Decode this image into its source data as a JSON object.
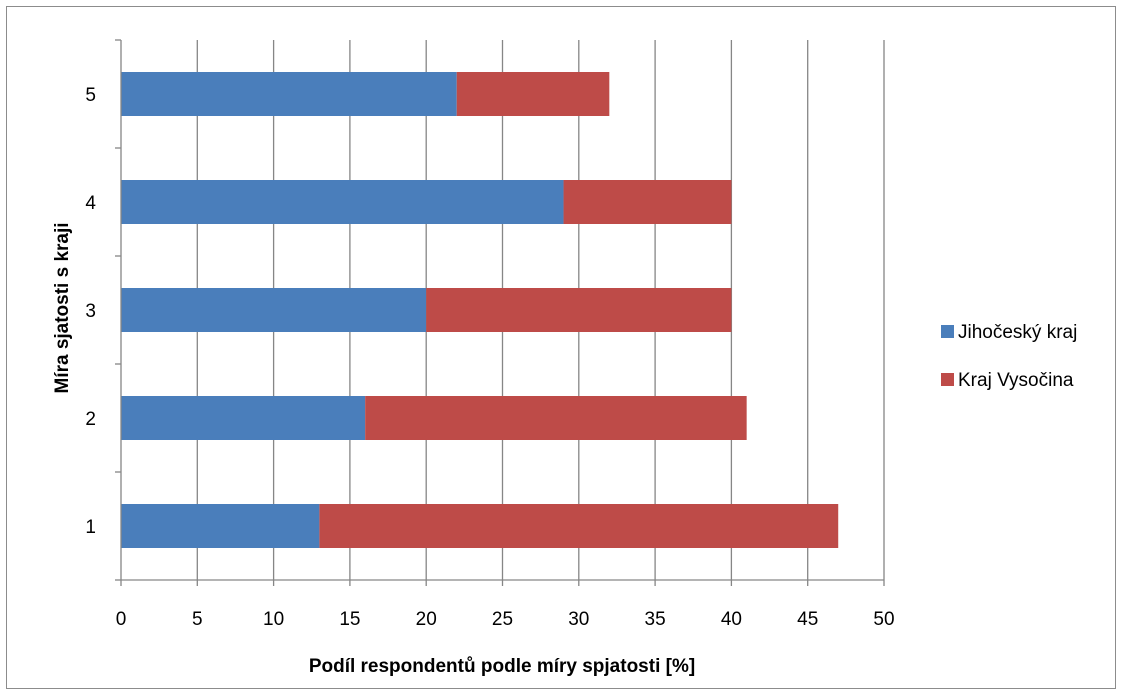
{
  "chart_data": {
    "type": "bar",
    "orientation": "horizontal",
    "stacked": true,
    "categories": [
      "1",
      "2",
      "3",
      "4",
      "5"
    ],
    "series": [
      {
        "name": "Jihočeský kraj",
        "values": [
          13,
          16,
          20,
          29,
          22
        ],
        "color": "#4a7ebb"
      },
      {
        "name": "Kraj Vysočina",
        "values": [
          34,
          25,
          20,
          11,
          10
        ],
        "color": "#be4b48"
      }
    ],
    "xlabel": "Podíl respondentů podle míry spjatosti [%]",
    "ylabel": "Míra sjatosti s kraji",
    "xlim": [
      0,
      50
    ],
    "x_ticks": [
      "0",
      "5",
      "10",
      "15",
      "20",
      "25",
      "30",
      "35",
      "40",
      "45",
      "50"
    ],
    "grid": "vertical",
    "legend_position": "right"
  }
}
